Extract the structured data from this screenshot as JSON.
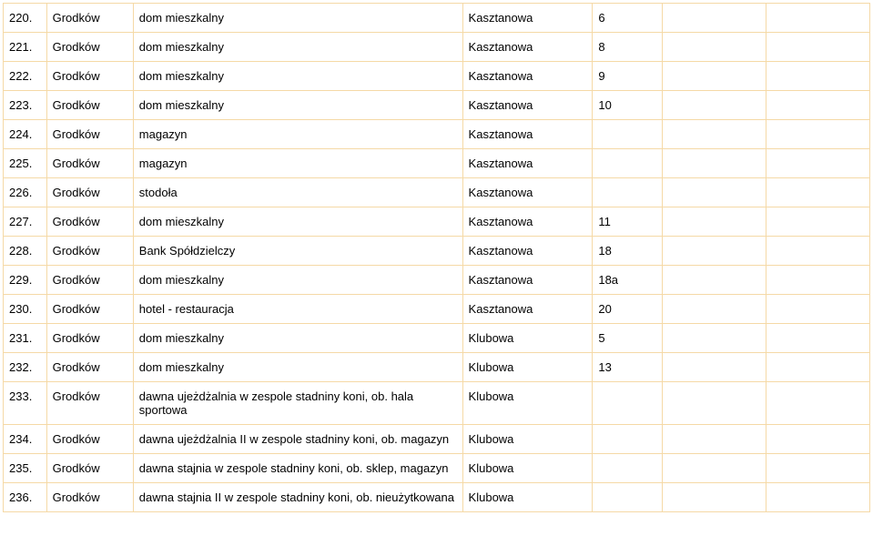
{
  "table": {
    "rows": [
      {
        "num": "220.",
        "place": "Grodków",
        "desc": "dom mieszkalny",
        "street": "Kasztanowa",
        "no": "6"
      },
      {
        "num": "221.",
        "place": "Grodków",
        "desc": "dom mieszkalny",
        "street": "Kasztanowa",
        "no": "8"
      },
      {
        "num": "222.",
        "place": "Grodków",
        "desc": "dom mieszkalny",
        "street": "Kasztanowa",
        "no": "9"
      },
      {
        "num": "223.",
        "place": "Grodków",
        "desc": "dom mieszkalny",
        "street": "Kasztanowa",
        "no": "10"
      },
      {
        "num": "224.",
        "place": "Grodków",
        "desc": "magazyn",
        "street": "Kasztanowa",
        "no": ""
      },
      {
        "num": "225.",
        "place": "Grodków",
        "desc": "magazyn",
        "street": "Kasztanowa",
        "no": ""
      },
      {
        "num": "226.",
        "place": "Grodków",
        "desc": "stodoła",
        "street": "Kasztanowa",
        "no": ""
      },
      {
        "num": "227.",
        "place": "Grodków",
        "desc": "dom mieszkalny",
        "street": "Kasztanowa",
        "no": "11"
      },
      {
        "num": "228.",
        "place": "Grodków",
        "desc": "Bank Spółdzielczy",
        "street": "Kasztanowa",
        "no": "18"
      },
      {
        "num": "229.",
        "place": "Grodków",
        "desc": "dom mieszkalny",
        "street": "Kasztanowa",
        "no": "18a"
      },
      {
        "num": "230.",
        "place": "Grodków",
        "desc": "hotel - restauracja",
        "street": "Kasztanowa",
        "no": "20"
      },
      {
        "num": "231.",
        "place": "Grodków",
        "desc": "dom mieszkalny",
        "street": "Klubowa",
        "no": "5"
      },
      {
        "num": "232.",
        "place": "Grodków",
        "desc": "dom mieszkalny",
        "street": "Klubowa",
        "no": "13"
      },
      {
        "num": "233.",
        "place": "Grodków",
        "desc": "dawna ujeżdżalnia w zespole stadniny koni, ob. hala sportowa",
        "street": "Klubowa",
        "no": ""
      },
      {
        "num": "234.",
        "place": "Grodków",
        "desc": "dawna ujeżdżalnia II w zespole stadniny koni, ob. magazyn",
        "street": "Klubowa",
        "no": ""
      },
      {
        "num": "235.",
        "place": "Grodków",
        "desc": "dawna stajnia w zespole stadniny koni, ob. sklep, magazyn",
        "street": "Klubowa",
        "no": ""
      },
      {
        "num": "236.",
        "place": "Grodków",
        "desc": "dawna stajnia II w zespole stadniny koni, ob. nieużytkowana",
        "street": "Klubowa",
        "no": ""
      }
    ]
  }
}
